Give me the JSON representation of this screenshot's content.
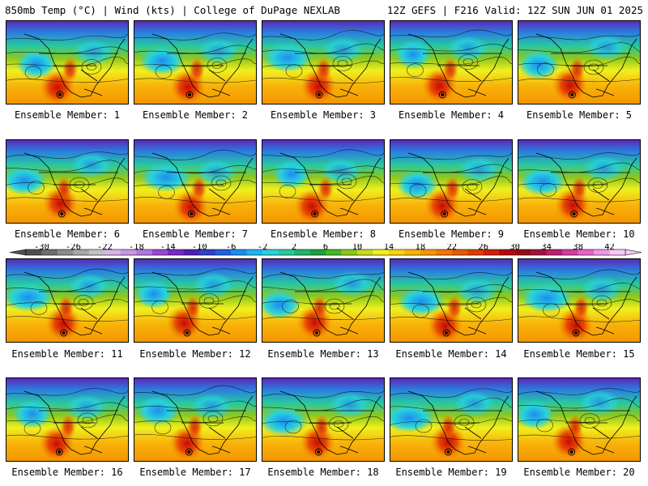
{
  "header": {
    "left": "850mb Temp (°C) | Wind (kts) | College of DuPage NEXLAB",
    "right": "12Z GEFS | F216 Valid: 12Z SUN JUN 01 2025"
  },
  "members": [
    {
      "label": "Ensemble Member: 1"
    },
    {
      "label": "Ensemble Member: 2"
    },
    {
      "label": "Ensemble Member: 3"
    },
    {
      "label": "Ensemble Member: 4"
    },
    {
      "label": "Ensemble Member: 5"
    },
    {
      "label": "Ensemble Member: 6"
    },
    {
      "label": "Ensemble Member: 7"
    },
    {
      "label": "Ensemble Member: 8"
    },
    {
      "label": "Ensemble Member: 9"
    },
    {
      "label": "Ensemble Member: 10"
    },
    {
      "label": "Ensemble Member: 11"
    },
    {
      "label": "Ensemble Member: 12"
    },
    {
      "label": "Ensemble Member: 13"
    },
    {
      "label": "Ensemble Member: 14"
    },
    {
      "label": "Ensemble Member: 15"
    },
    {
      "label": "Ensemble Member: 16"
    },
    {
      "label": "Ensemble Member: 17"
    },
    {
      "label": "Ensemble Member: 18"
    },
    {
      "label": "Ensemble Member: 19"
    },
    {
      "label": "Ensemble Member: 20"
    }
  ],
  "colorbar": {
    "tick_labels": [
      "-30",
      "-26",
      "-22",
      "-18",
      "-14",
      "-10",
      "-6",
      "-2",
      "2",
      "6",
      "10",
      "14",
      "18",
      "22",
      "26",
      "30",
      "34",
      "38",
      "42"
    ],
    "colors": [
      "#505050",
      "#6e6e6e",
      "#8c8c8c",
      "#a8a8a8",
      "#c2c2c2",
      "#d8b4e8",
      "#c896e6",
      "#b478dc",
      "#9a46d2",
      "#7828c8",
      "#5020b4",
      "#3040c8",
      "#2060e0",
      "#1e8cf0",
      "#1eb4f0",
      "#28d2dc",
      "#28c8a0",
      "#20b46e",
      "#1ea040",
      "#48b428",
      "#8cc81e",
      "#c8dc1e",
      "#f0f01e",
      "#f8d214",
      "#f8b40a",
      "#f49600",
      "#f07800",
      "#e85a00",
      "#e03c00",
      "#d21e0a",
      "#b40a0a",
      "#960a14",
      "#a0143c",
      "#be1e6e",
      "#d23ca0",
      "#e664c8",
      "#f096e6",
      "#f8c8f4"
    ]
  }
}
